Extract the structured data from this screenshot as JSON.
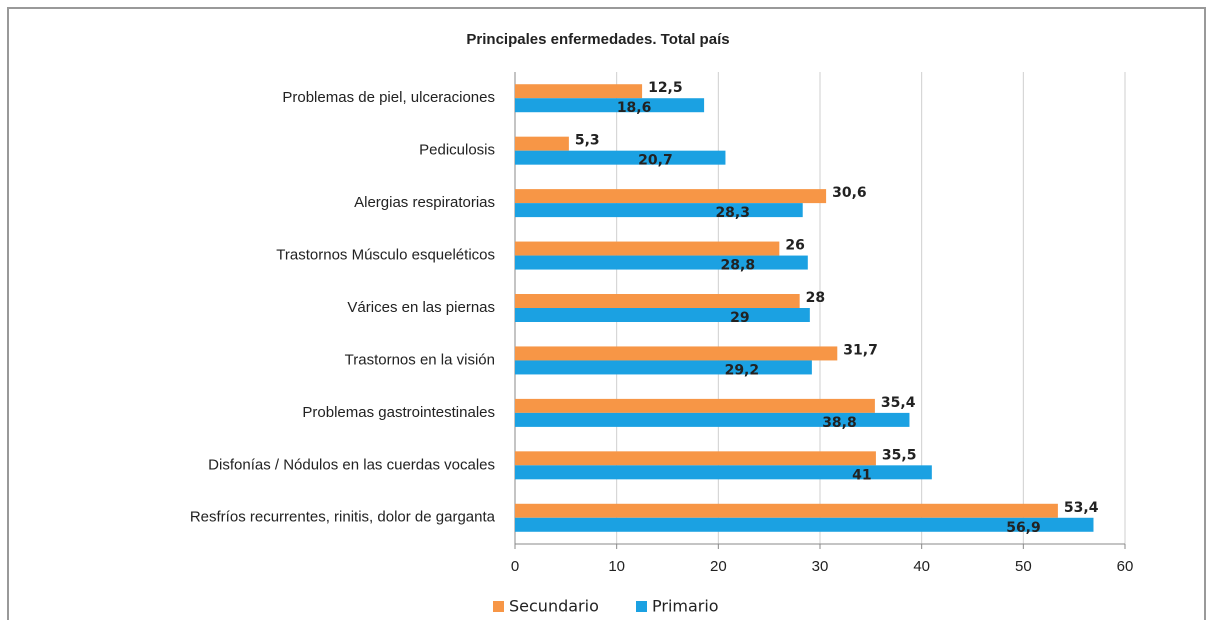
{
  "chart_data": {
    "type": "hbar",
    "title": "Principales enfermedades. Total país",
    "categories": [
      "Problemas de piel, ulceraciones",
      "Pediculosis",
      "Alergias respiratorias",
      "Trastornos Músculo esqueléticos",
      "Várices en las piernas",
      "Trastornos en la visión",
      "Problemas gastrointestinales",
      "Disfonías / Nódulos en las cuerdas vocales",
      "Resfríos recurrentes, rinitis, dolor de garganta"
    ],
    "series": [
      {
        "name": "Secundario",
        "color": "#f79646",
        "values": [
          12.5,
          5.3,
          30.6,
          26,
          28,
          31.7,
          35.4,
          35.5,
          53.4
        ],
        "value_labels": [
          "12,5",
          "5,3",
          "30,6",
          "26",
          "28",
          "31,7",
          "35,4",
          "35,5",
          "53,4"
        ]
      },
      {
        "name": "Primario",
        "color": "#1ba1e2",
        "values": [
          18.6,
          20.7,
          28.3,
          28.8,
          29,
          29.2,
          38.8,
          41,
          56.9
        ],
        "value_labels": [
          "18,6",
          "20,7",
          "28,3",
          "28,8",
          "29",
          "29,2",
          "38,8",
          "41",
          "56,9"
        ]
      }
    ],
    "xlim": [
      0,
      60
    ],
    "xticks": [
      0,
      10,
      20,
      30,
      40,
      50,
      60
    ],
    "grid": true,
    "legend": "bottom"
  }
}
